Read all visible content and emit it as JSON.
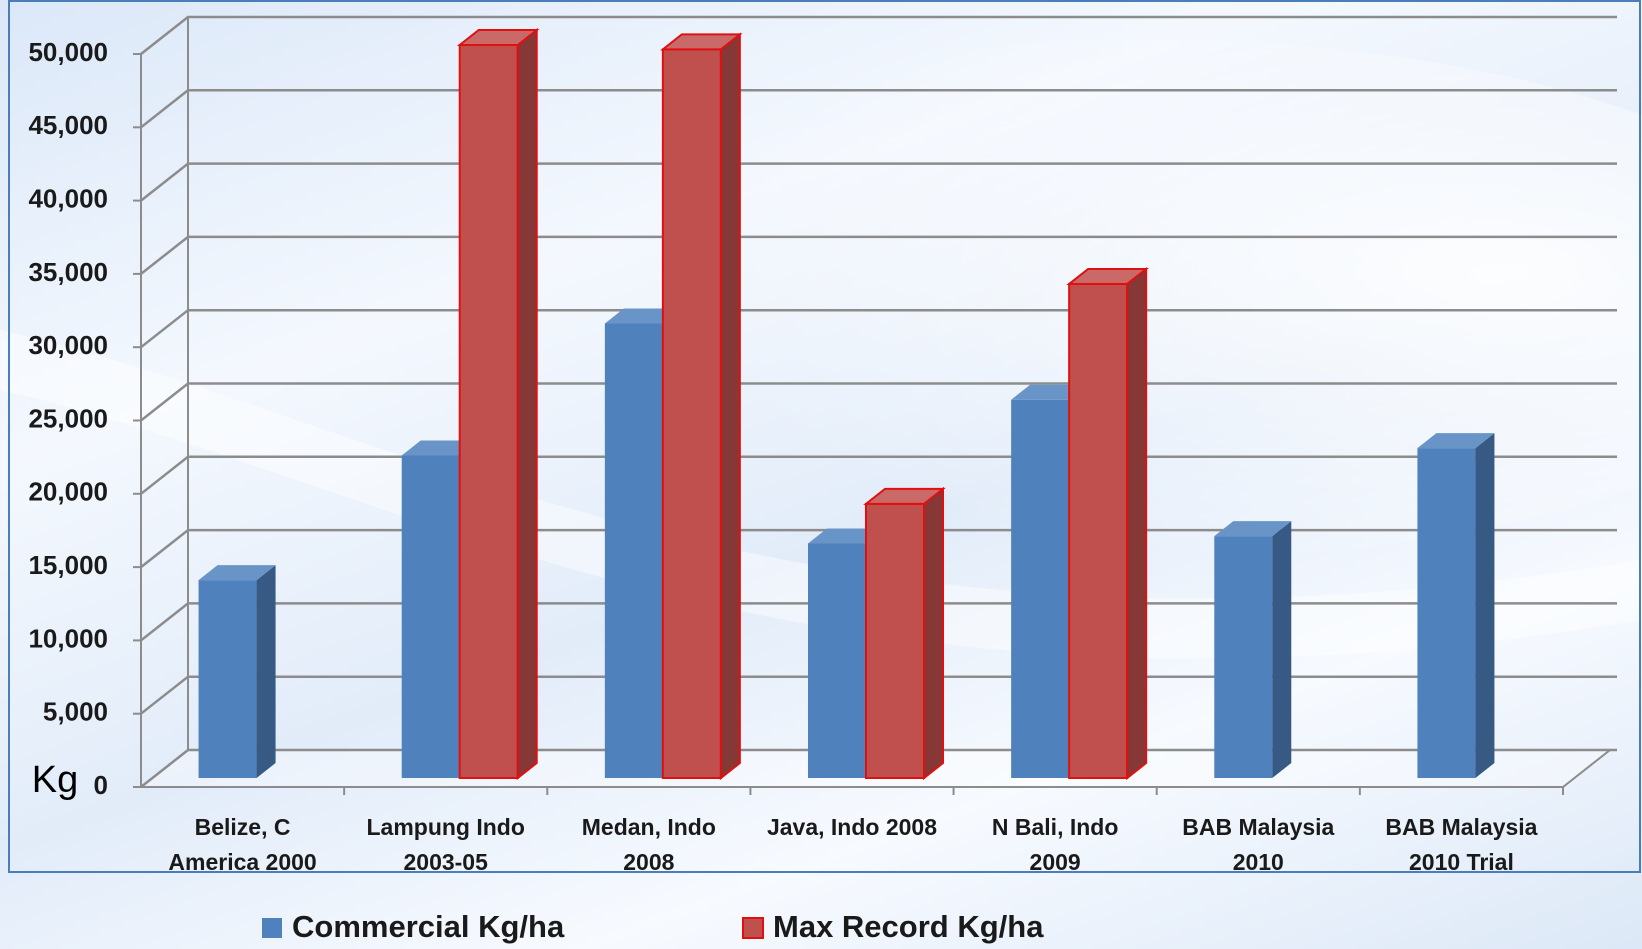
{
  "chart_data": {
    "type": "bar3d",
    "y_label": "Kg",
    "categories": [
      "Belize, C America 2000",
      "Lampung Indo 2003-05",
      "Medan, Indo 2008",
      "Java, Indo 2008",
      "N Bali, Indo 2009",
      "BAB Malaysia 2010",
      "BAB Malaysia 2010 Trial"
    ],
    "series": [
      {
        "name": "Commercial Kg/ha",
        "color": "#4f81bd",
        "values": [
          13500,
          22000,
          31000,
          16000,
          25800,
          16500,
          22500
        ]
      },
      {
        "name": "Max Record Kg/ha",
        "color": "#c0504d",
        "values": [
          null,
          50000,
          49700,
          18700,
          33700,
          null,
          null
        ]
      }
    ],
    "ylim": [
      0,
      50000
    ],
    "yticks": [
      0,
      {
        "value": 5000,
        "label": "5,000"
      },
      {
        "value": 10000,
        "label": "10,000"
      },
      {
        "value": 15000,
        "label": "15,000"
      },
      {
        "value": 20000,
        "label": "20,000"
      },
      {
        "value": 25000,
        "label": "25,000"
      },
      {
        "value": 30000,
        "label": "30,000"
      },
      {
        "value": 35000,
        "label": "35,000"
      },
      {
        "value": 40000,
        "label": "40,000"
      },
      {
        "value": 45000,
        "label": "45,000"
      },
      {
        "value": 50000,
        "label": "50,000"
      }
    ],
    "grid": true,
    "legend": "bottom"
  }
}
